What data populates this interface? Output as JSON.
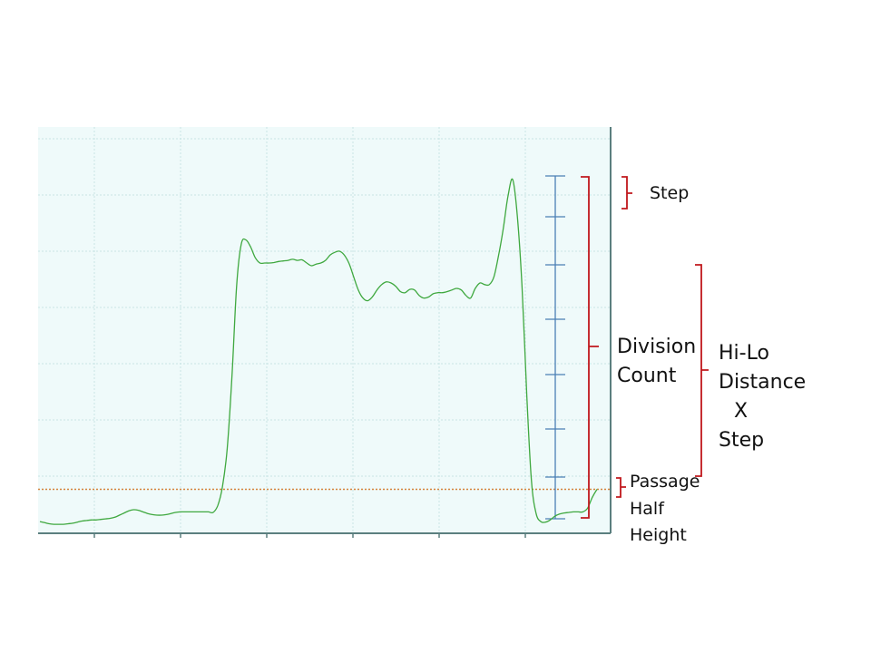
{
  "labels": {
    "step": "Step",
    "division_count": [
      "Division",
      "Count"
    ],
    "hilo_distance_x_step": [
      "Hi-Lo",
      "Distance",
      "X",
      "Step"
    ],
    "passage_half_height": [
      "Passage",
      "Half",
      "Height"
    ]
  },
  "colors": {
    "plot_background": "#effafa",
    "grid": "#c9e4e4",
    "axis": "#5b7f7f",
    "signal": "#3fa83f",
    "half_height_line": "#d4823a",
    "division_ruler": "#4a7fb5",
    "bracket": "#c0171c"
  },
  "ruler": {
    "divisions": 7
  },
  "chart_data": {
    "type": "line",
    "series": [
      {
        "values": [
          0.15,
          0.13,
          0.11,
          0.1,
          0.1,
          0.1,
          0.11,
          0.12,
          0.14,
          0.16,
          0.17,
          0.18,
          0.18,
          0.19,
          0.2,
          0.21,
          0.23,
          0.27,
          0.31,
          0.35,
          0.37,
          0.36,
          0.33,
          0.3,
          0.28,
          0.27,
          0.27,
          0.28,
          0.3,
          0.32,
          0.33,
          0.33,
          0.33,
          0.33,
          0.33,
          0.33,
          0.33,
          0.32,
          0.45,
          0.8,
          1.5,
          2.8,
          4.5,
          5.3,
          5.38,
          5.25,
          5.05,
          4.95,
          4.95,
          4.95,
          4.96,
          4.98,
          4.99,
          5.0,
          5.02,
          5.0,
          5.01,
          4.95,
          4.9,
          4.93,
          4.95,
          5.0,
          5.1,
          5.15,
          5.17,
          5.1,
          4.95,
          4.7,
          4.45,
          4.3,
          4.25,
          4.32,
          4.45,
          4.55,
          4.6,
          4.58,
          4.52,
          4.42,
          4.4,
          4.46,
          4.45,
          4.35,
          4.3,
          4.32,
          4.38,
          4.4,
          4.4,
          4.42,
          4.45,
          4.48,
          4.45,
          4.35,
          4.3,
          4.48,
          4.58,
          4.55,
          4.55,
          4.7,
          5.1,
          5.6,
          6.2,
          6.5,
          5.8,
          4.5,
          2.5,
          0.9,
          0.3,
          0.15,
          0.14,
          0.18,
          0.25,
          0.29,
          0.31,
          0.32,
          0.33,
          0.33,
          0.33,
          0.4,
          0.6,
          0.75
        ]
      }
    ],
    "half_height": 0.75,
    "grid": true
  }
}
